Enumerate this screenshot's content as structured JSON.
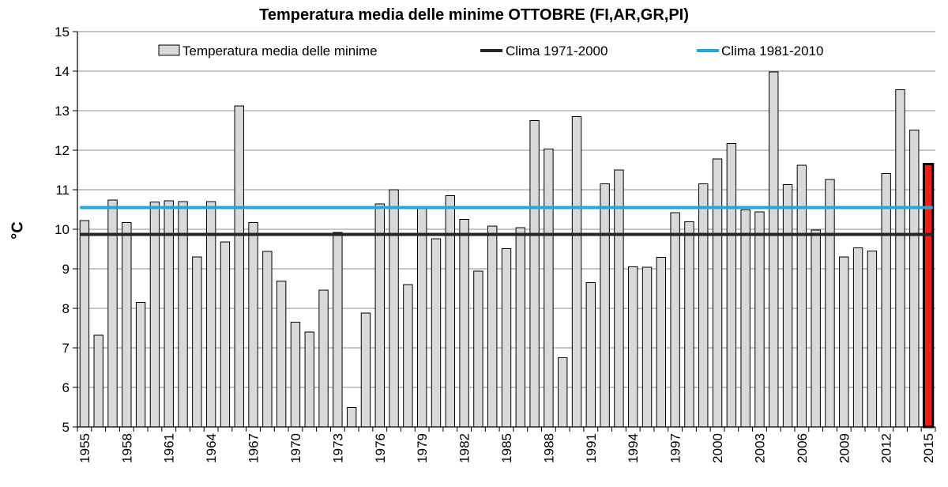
{
  "chart_data": {
    "type": "bar",
    "title": "Temperatura media delle minime OTTOBRE (FI,AR,GR,PI)",
    "ylabel": "°C",
    "xlabel": "",
    "ylim": [
      5,
      15
    ],
    "yticks": [
      5,
      6,
      7,
      8,
      9,
      10,
      11,
      12,
      13,
      14,
      15
    ],
    "grid": true,
    "legend_position": "top",
    "categories": [
      1955,
      1956,
      1957,
      1958,
      1959,
      1960,
      1961,
      1962,
      1963,
      1964,
      1965,
      1966,
      1967,
      1968,
      1969,
      1970,
      1971,
      1972,
      1973,
      1974,
      1975,
      1976,
      1977,
      1978,
      1979,
      1980,
      1981,
      1982,
      1983,
      1984,
      1985,
      1986,
      1987,
      1988,
      1989,
      1990,
      1991,
      1992,
      1993,
      1994,
      1995,
      1996,
      1997,
      1998,
      1999,
      2000,
      2001,
      2002,
      2003,
      2004,
      2005,
      2006,
      2007,
      2008,
      2009,
      2010,
      2011,
      2012,
      2013,
      2014,
      2015
    ],
    "xtick_labels": [
      "1955",
      "1958",
      "1961",
      "1964",
      "1967",
      "1970",
      "1973",
      "1976",
      "1979",
      "1982",
      "1985",
      "1988",
      "1991",
      "1994",
      "1997",
      "2000",
      "2003",
      "2006",
      "2009",
      "2012",
      "2015"
    ],
    "series": [
      {
        "name": "Temperatura media delle minime",
        "color": "#d9d9d9",
        "values": [
          10.22,
          7.32,
          10.74,
          10.17,
          8.15,
          10.69,
          10.72,
          10.7,
          9.3,
          10.7,
          9.68,
          13.12,
          10.17,
          9.44,
          8.69,
          7.65,
          7.4,
          8.46,
          9.92,
          5.49,
          7.88,
          10.64,
          11.0,
          8.6,
          10.55,
          9.76,
          10.85,
          10.25,
          8.94,
          10.08,
          9.51,
          10.04,
          12.75,
          12.03,
          6.75,
          12.85,
          8.65,
          11.15,
          11.5,
          9.05,
          9.04,
          9.29,
          10.42,
          10.19,
          11.15,
          11.78,
          12.17,
          10.49,
          10.44,
          13.98,
          11.13,
          11.62,
          9.98,
          11.26,
          9.3,
          9.53,
          9.45,
          11.41,
          13.53,
          12.51,
          11.65
        ]
      },
      {
        "name": "Clima 1971-2000",
        "color": "#262626",
        "value": 9.87
      },
      {
        "name": "Clima 1981-2010",
        "color": "#1fa9dd",
        "value": 10.55
      }
    ],
    "highlight": {
      "year": 2015,
      "fill": "#ff1a1a",
      "stroke": "#000000"
    }
  }
}
